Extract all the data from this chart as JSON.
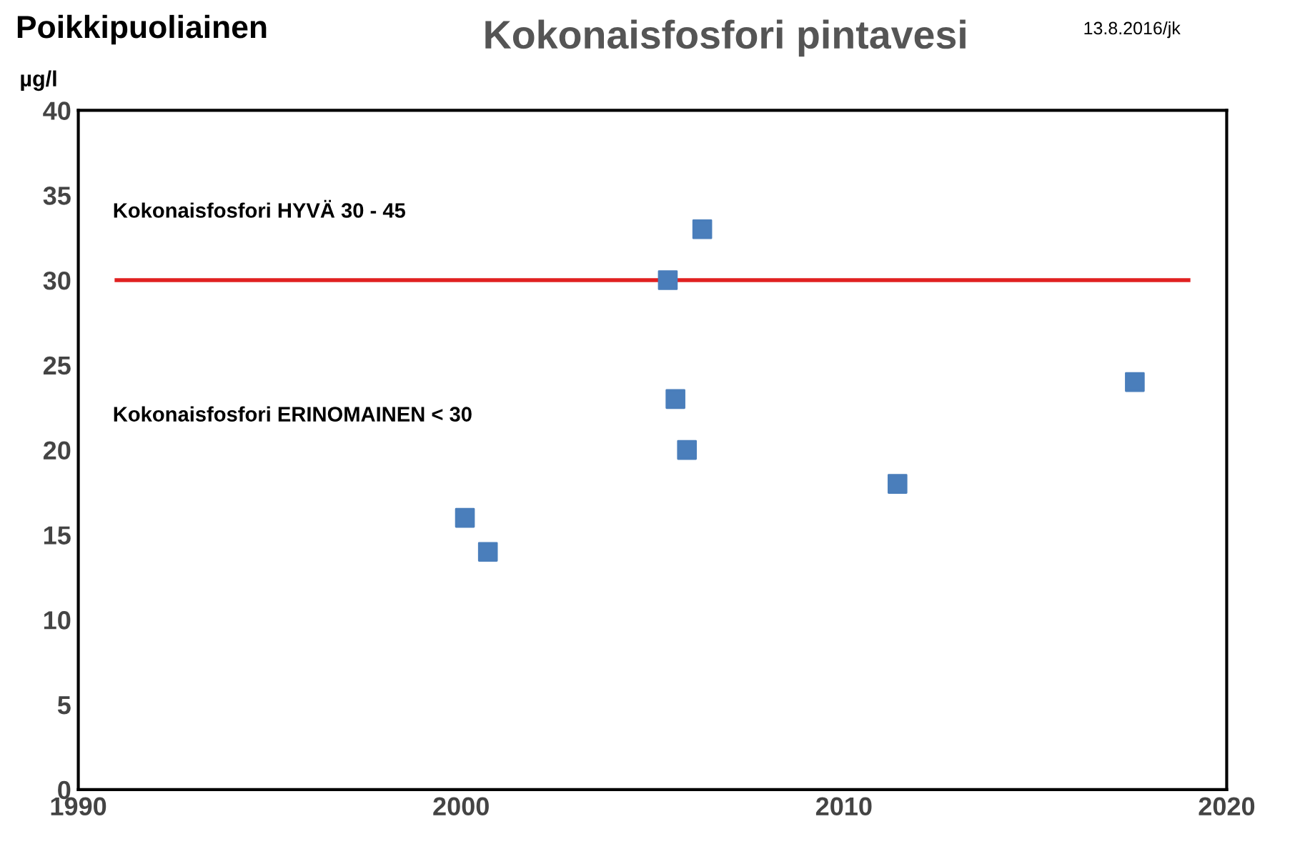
{
  "chart_data": {
    "type": "scatter",
    "title": "Kokonaisfosfori pintavesi",
    "subtitle": "Poikkipuoliainen",
    "ylabel": "µg/l",
    "series": [
      {
        "color": "#4a7ebb",
        "marker": "square",
        "x": [
          2000.1,
          2000.7,
          2005.4,
          2006.3,
          2005.6,
          2005.9,
          2011.4,
          2017.6
        ],
        "values": [
          16,
          14,
          30,
          33,
          23,
          20,
          18,
          24
        ]
      },
      {
        "type": "line",
        "marker": "none",
        "color": "#e02020",
        "x": [
          1991,
          2019
        ],
        "values": [
          30,
          30
        ]
      }
    ],
    "annotations": [
      "Kokonaisfosfori HYVÄ 30 - 45",
      "Kokonaisfosfori ERINOMAINEN < 30",
      "13.8.2016/jk"
    ],
    "xlim": [
      1990,
      2020
    ],
    "xticks": [
      1990,
      2000,
      2010,
      2020
    ],
    "ylim": [
      0,
      40
    ],
    "yticks": [
      0,
      5,
      10,
      15,
      20,
      25,
      30,
      35,
      40
    ],
    "grid": false,
    "legend": false
  }
}
